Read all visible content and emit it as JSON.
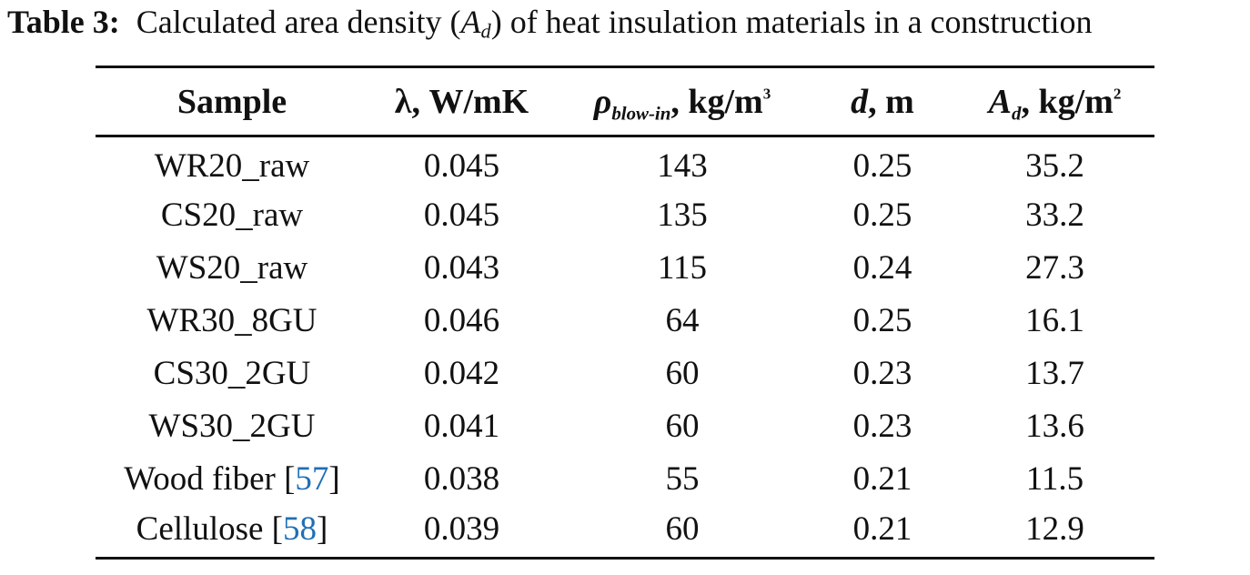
{
  "caption": {
    "label": "Table 3:",
    "text_before": "Calculated area density (",
    "symbol": "A",
    "symbol_sub": "d",
    "text_after": ") of heat insulation materials in a construction"
  },
  "table": {
    "headers": {
      "sample": "Sample",
      "lambda": "λ, W/mK",
      "rho": {
        "symbol": "ρ",
        "sub": "blow-in",
        "unit_base": ", kg/m",
        "unit_exp": "3"
      },
      "d": {
        "symbol": "d",
        "unit": ", m"
      },
      "area": {
        "symbol": "A",
        "sub": "d",
        "unit_base": ", kg/m",
        "unit_exp": "2"
      }
    },
    "rows": [
      {
        "sample": "WR20_raw",
        "ref": "",
        "lambda": "0.045",
        "rho": "143",
        "d": "0.25",
        "ad": "35.2"
      },
      {
        "sample": "CS20_raw",
        "ref": "",
        "lambda": "0.045",
        "rho": "135",
        "d": "0.25",
        "ad": "33.2"
      },
      {
        "sample": "WS20_raw",
        "ref": "",
        "lambda": "0.043",
        "rho": "115",
        "d": "0.24",
        "ad": "27.3"
      },
      {
        "sample": "WR30_8GU",
        "ref": "",
        "lambda": "0.046",
        "rho": "64",
        "d": "0.25",
        "ad": "16.1"
      },
      {
        "sample": "CS30_2GU",
        "ref": "",
        "lambda": "0.042",
        "rho": "60",
        "d": "0.23",
        "ad": "13.7"
      },
      {
        "sample": "WS30_2GU",
        "ref": "",
        "lambda": "0.041",
        "rho": "60",
        "d": "0.23",
        "ad": "13.6"
      },
      {
        "sample": "Wood fiber",
        "ref": "57",
        "lambda": "0.038",
        "rho": "55",
        "d": "0.21",
        "ad": "11.5"
      },
      {
        "sample": "Cellulose",
        "ref": "58",
        "lambda": "0.039",
        "rho": "60",
        "d": "0.21",
        "ad": "12.9"
      }
    ]
  },
  "colors": {
    "text": "#111111",
    "reference_link": "#1f6fb5",
    "background": "#ffffff"
  }
}
